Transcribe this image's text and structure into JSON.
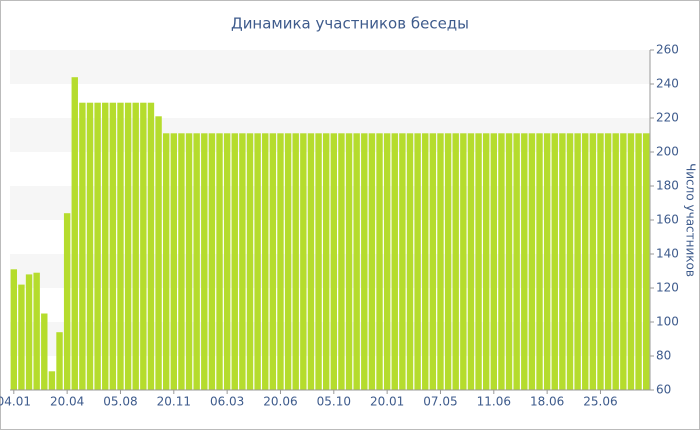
{
  "chart_data": {
    "type": "bar",
    "title": "Динамика участников беседы",
    "y_label": "Число участников",
    "categories": [
      "04.01",
      null,
      null,
      null,
      null,
      null,
      null,
      "20.04",
      null,
      null,
      null,
      null,
      null,
      null,
      "05.08",
      null,
      null,
      null,
      null,
      null,
      null,
      "20.11",
      null,
      null,
      null,
      null,
      null,
      null,
      "06.03",
      null,
      null,
      null,
      null,
      null,
      null,
      "20.06",
      null,
      null,
      null,
      null,
      null,
      null,
      "05.10",
      null,
      null,
      null,
      null,
      null,
      null,
      "20.01",
      null,
      null,
      null,
      null,
      null,
      null,
      "07.05",
      null,
      null,
      null,
      null,
      null,
      null,
      "11.06",
      null,
      null,
      null,
      null,
      null,
      null,
      "18.06",
      null,
      null,
      null,
      null,
      null,
      null,
      "25.06",
      null,
      null,
      null,
      null,
      null,
      null
    ],
    "values": [
      131,
      122,
      128,
      129,
      105,
      71,
      94,
      164,
      244,
      229,
      229,
      229,
      229,
      229,
      229,
      229,
      229,
      229,
      229,
      221,
      211,
      211,
      211,
      211,
      211,
      211,
      211,
      211,
      211,
      211,
      211,
      211,
      211,
      211,
      211,
      211,
      211,
      211,
      211,
      211,
      211,
      211,
      211,
      211,
      211,
      211,
      211,
      211,
      211,
      211,
      211,
      211,
      211,
      211,
      211,
      211,
      211,
      211,
      211,
      211,
      211,
      211,
      211,
      211,
      211,
      211,
      211,
      211,
      211,
      211,
      211,
      211,
      211,
      211,
      211,
      211,
      211,
      211,
      211,
      211,
      211,
      211,
      211,
      211
    ],
    "color": "#b5dc2d",
    "ylim": [
      60,
      260
    ],
    "yticks": [
      60,
      80,
      100,
      120,
      140,
      160,
      180,
      200,
      220,
      240,
      260
    ],
    "grid": true,
    "y_axis_side": "right"
  }
}
